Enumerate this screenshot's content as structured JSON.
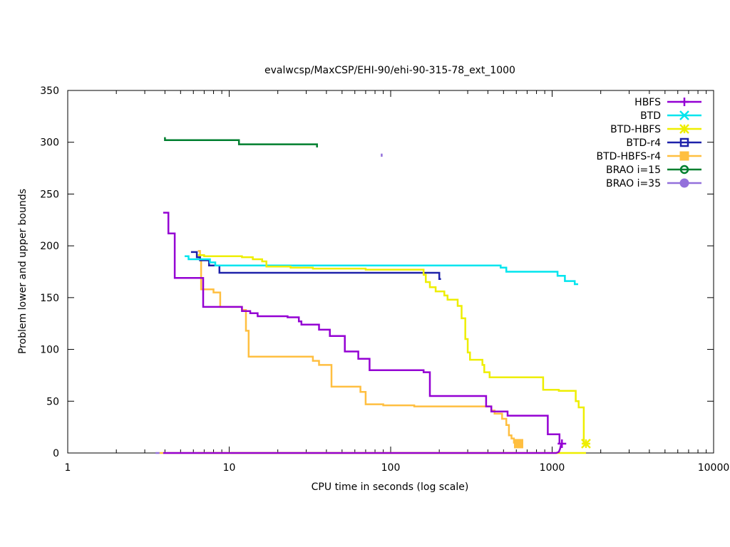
{
  "chart_data": {
    "type": "line",
    "title": "evalwcsp/MaxCSP/EHI-90/ehi-90-315-78_ext_1000",
    "xlabel": "CPU time in seconds (log scale)",
    "ylabel": "Problem lower and upper bounds",
    "x_scale": "log",
    "xlim": [
      1,
      10000
    ],
    "ylim": [
      0,
      350
    ],
    "x_ticks": [
      1,
      10,
      100,
      1000,
      10000
    ],
    "x_tick_labels": [
      "1",
      "10",
      "100",
      "1000",
      "10000"
    ],
    "y_ticks": [
      0,
      50,
      100,
      150,
      200,
      250,
      300,
      350
    ],
    "y_tick_labels": [
      "0",
      "50",
      "100",
      "150",
      "200",
      "250",
      "300",
      "350"
    ],
    "legend_position": "top-right",
    "series": [
      {
        "name": "HBFS",
        "color": "#9400d3",
        "marker": "plus",
        "upper": [
          [
            3.9,
            232
          ],
          [
            4.2,
            232
          ],
          [
            4.2,
            212
          ],
          [
            4.6,
            212
          ],
          [
            4.6,
            169
          ],
          [
            6.9,
            169
          ],
          [
            6.9,
            141
          ],
          [
            8.8,
            141
          ],
          [
            8.8,
            141
          ],
          [
            12,
            141
          ],
          [
            12,
            137
          ],
          [
            13.5,
            137
          ],
          [
            13.5,
            135
          ],
          [
            15,
            135
          ],
          [
            15,
            132
          ],
          [
            23,
            132
          ],
          [
            23,
            131
          ],
          [
            27,
            131
          ],
          [
            27,
            127
          ],
          [
            28,
            127
          ],
          [
            28,
            124
          ],
          [
            36,
            124
          ],
          [
            36,
            119
          ],
          [
            42,
            119
          ],
          [
            42,
            113
          ],
          [
            52,
            113
          ],
          [
            52,
            98
          ],
          [
            63,
            98
          ],
          [
            63,
            91
          ],
          [
            74,
            91
          ],
          [
            74,
            80
          ],
          [
            160,
            80
          ],
          [
            160,
            78
          ],
          [
            175,
            78
          ],
          [
            175,
            55
          ],
          [
            390,
            55
          ],
          [
            390,
            45
          ],
          [
            420,
            45
          ],
          [
            420,
            40
          ],
          [
            530,
            40
          ],
          [
            530,
            36
          ],
          [
            940,
            36
          ],
          [
            940,
            18
          ],
          [
            1110,
            18
          ],
          [
            1110,
            9
          ]
        ],
        "lower": [
          [
            3.9,
            0
          ],
          [
            1060,
            0
          ],
          [
            1100,
            1
          ],
          [
            1120,
            4
          ],
          [
            1140,
            9
          ]
        ],
        "end_marker": [
          1150,
          9
        ]
      },
      {
        "name": "BTD",
        "color": "#00e5ee",
        "marker": "x",
        "upper": [
          [
            5.3,
            190
          ],
          [
            5.6,
            190
          ],
          [
            5.6,
            187
          ],
          [
            7.6,
            187
          ],
          [
            7.6,
            184
          ],
          [
            8.2,
            184
          ],
          [
            8.2,
            181
          ],
          [
            480,
            181
          ],
          [
            480,
            179
          ],
          [
            520,
            179
          ],
          [
            520,
            175
          ],
          [
            1080,
            175
          ],
          [
            1080,
            171
          ],
          [
            1200,
            171
          ],
          [
            1200,
            166
          ],
          [
            1380,
            166
          ],
          [
            1380,
            163
          ],
          [
            1450,
            163
          ]
        ],
        "lower": [],
        "end_marker": null
      },
      {
        "name": "BTD-HBFS",
        "color": "#eeee00",
        "marker": "star",
        "upper": [
          [
            6.4,
            191
          ],
          [
            7.0,
            191
          ],
          [
            7.0,
            190
          ],
          [
            12,
            190
          ],
          [
            12,
            189
          ],
          [
            14,
            189
          ],
          [
            14,
            187
          ],
          [
            16,
            187
          ],
          [
            16,
            185
          ],
          [
            17,
            185
          ],
          [
            17,
            180
          ],
          [
            24,
            180
          ],
          [
            24,
            179
          ],
          [
            33,
            179
          ],
          [
            33,
            178
          ],
          [
            70,
            178
          ],
          [
            70,
            177
          ],
          [
            160,
            177
          ],
          [
            160,
            172
          ],
          [
            165,
            172
          ],
          [
            165,
            165
          ],
          [
            175,
            165
          ],
          [
            175,
            160
          ],
          [
            190,
            160
          ],
          [
            190,
            156
          ],
          [
            215,
            156
          ],
          [
            215,
            152
          ],
          [
            225,
            152
          ],
          [
            225,
            148
          ],
          [
            260,
            148
          ],
          [
            260,
            142
          ],
          [
            275,
            142
          ],
          [
            275,
            130
          ],
          [
            290,
            130
          ],
          [
            290,
            110
          ],
          [
            300,
            110
          ],
          [
            300,
            97
          ],
          [
            310,
            97
          ],
          [
            310,
            90
          ],
          [
            370,
            90
          ],
          [
            370,
            85
          ],
          [
            380,
            85
          ],
          [
            380,
            78
          ],
          [
            410,
            78
          ],
          [
            410,
            73
          ],
          [
            880,
            73
          ],
          [
            880,
            61
          ],
          [
            1100,
            61
          ],
          [
            1100,
            60
          ],
          [
            1400,
            60
          ],
          [
            1400,
            50
          ],
          [
            1460,
            50
          ],
          [
            1460,
            44
          ],
          [
            1570,
            44
          ],
          [
            1570,
            9
          ],
          [
            1620,
            9
          ]
        ],
        "lower": [
          [
            6.4,
            0
          ],
          [
            1620,
            0
          ]
        ],
        "end_marker": [
          1620,
          9
        ]
      },
      {
        "name": "BTD-r4",
        "color": "#1e22aa",
        "marker": "open-square",
        "upper": [
          [
            5.8,
            194
          ],
          [
            6.3,
            194
          ],
          [
            6.3,
            189
          ],
          [
            6.6,
            189
          ],
          [
            6.6,
            186
          ],
          [
            7.5,
            186
          ],
          [
            7.5,
            181
          ],
          [
            8.7,
            181
          ],
          [
            8.7,
            174
          ],
          [
            200,
            174
          ],
          [
            200,
            168
          ],
          [
            205,
            168
          ]
        ],
        "lower": [],
        "end_marker": null
      },
      {
        "name": "BTD-HBFS-r4",
        "color": "#ffbf40",
        "marker": "filled-square",
        "upper": [
          [
            6.4,
            195
          ],
          [
            6.6,
            195
          ],
          [
            6.6,
            187
          ],
          [
            6.7,
            187
          ],
          [
            6.7,
            158
          ],
          [
            8.0,
            158
          ],
          [
            8.0,
            155
          ],
          [
            8.8,
            155
          ],
          [
            8.8,
            141
          ],
          [
            12,
            141
          ],
          [
            12,
            138
          ],
          [
            12.7,
            138
          ],
          [
            12.7,
            118
          ],
          [
            13.2,
            118
          ],
          [
            13.2,
            93
          ],
          [
            33,
            93
          ],
          [
            33,
            89
          ],
          [
            36,
            89
          ],
          [
            36,
            85
          ],
          [
            43,
            85
          ],
          [
            43,
            64
          ],
          [
            65,
            64
          ],
          [
            65,
            59
          ],
          [
            70,
            59
          ],
          [
            70,
            47
          ],
          [
            90,
            47
          ],
          [
            90,
            46
          ],
          [
            140,
            46
          ],
          [
            140,
            45
          ],
          [
            420,
            45
          ],
          [
            420,
            41
          ],
          [
            440,
            41
          ],
          [
            440,
            38
          ],
          [
            490,
            38
          ],
          [
            490,
            33
          ],
          [
            520,
            33
          ],
          [
            520,
            27
          ],
          [
            540,
            27
          ],
          [
            540,
            17
          ],
          [
            560,
            17
          ],
          [
            560,
            14
          ],
          [
            580,
            14
          ],
          [
            580,
            10
          ],
          [
            620,
            10
          ]
        ],
        "lower": [
          [
            3.7,
            0
          ],
          [
            600,
            0
          ]
        ],
        "end_marker": [
          620,
          9
        ]
      },
      {
        "name": "BRAO i=15",
        "color": "#007f2f",
        "marker": "circle",
        "upper": [
          [
            3.95,
            304
          ],
          [
            4.0,
            304
          ],
          [
            4.0,
            302
          ],
          [
            11.5,
            302
          ],
          [
            11.5,
            298
          ],
          [
            35,
            298
          ],
          [
            35,
            295
          ]
        ],
        "lower": [],
        "end_marker": null
      },
      {
        "name": "BRAO i=35",
        "color": "#9370db",
        "marker": "filled-circle",
        "upper": [
          [
            88,
            289
          ],
          [
            88,
            286
          ]
        ],
        "lower": [
          [
            3.5,
            0
          ],
          [
            3.7,
            0
          ]
        ],
        "end_marker": null
      }
    ]
  }
}
